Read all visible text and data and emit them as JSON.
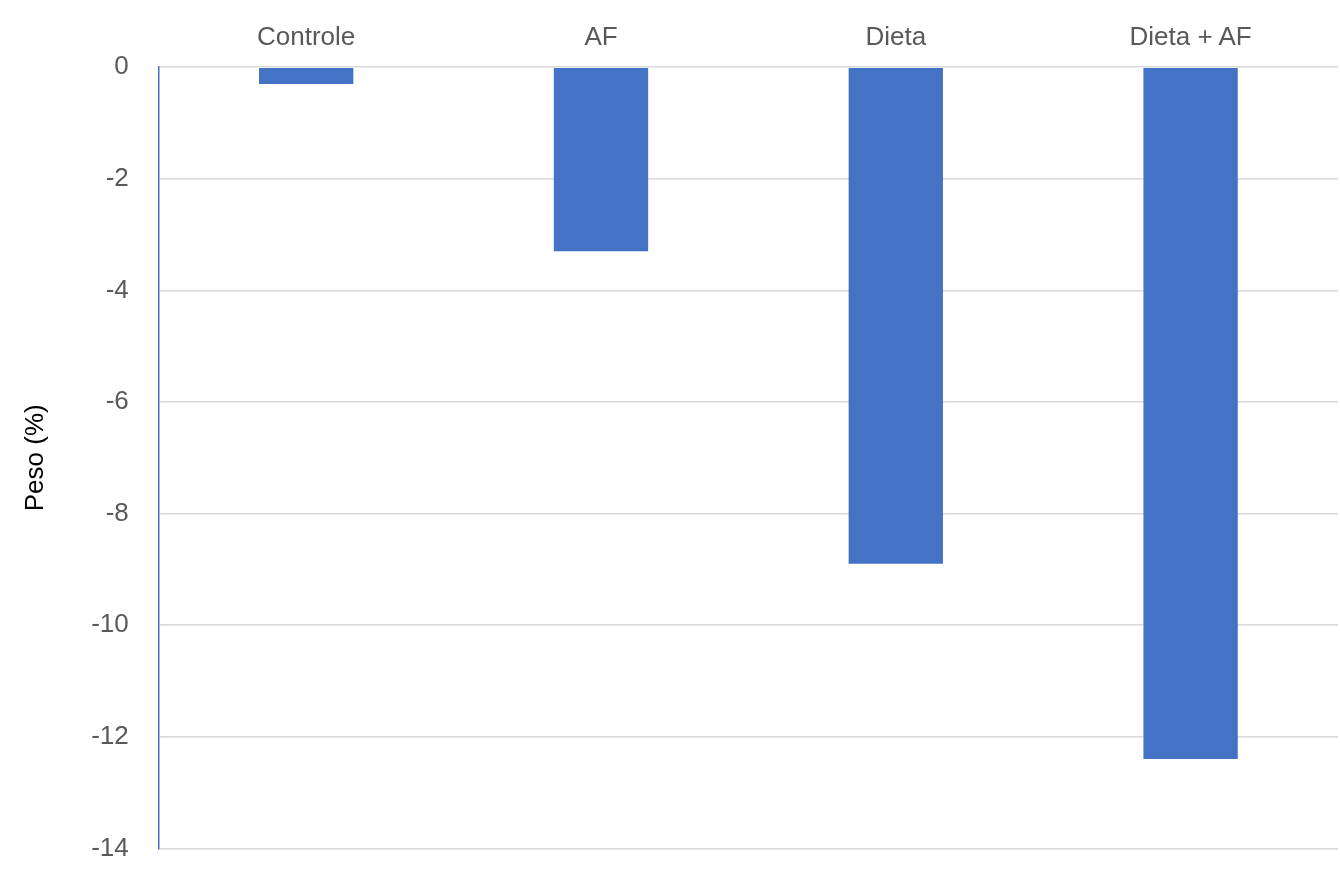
{
  "chart_data": {
    "type": "bar",
    "ylabel": "Peso (%)",
    "categories": [
      "Controle",
      "AF",
      "Dieta",
      "Dieta + AF"
    ],
    "values": [
      -0.3,
      -3.3,
      -8.9,
      -12.4
    ],
    "color": "#4472c4",
    "ylim": [
      -14,
      0
    ],
    "yticks": [
      0,
      -2,
      -4,
      -6,
      -8,
      -10,
      -12,
      -14
    ],
    "grid": "y"
  }
}
